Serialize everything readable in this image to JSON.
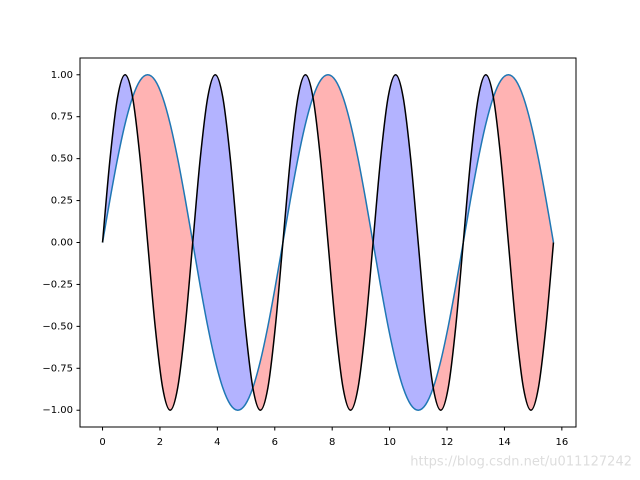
{
  "chart_data": {
    "type": "line",
    "x": [
      0,
      0.262,
      0.524,
      0.785,
      1.047,
      1.309,
      1.571,
      1.833,
      2.094,
      2.356,
      2.618,
      2.88,
      3.142,
      3.403,
      3.665,
      3.927,
      4.189,
      4.451,
      4.712,
      4.974,
      5.236,
      5.498,
      5.76,
      6.021,
      6.283,
      6.545,
      6.807,
      7.069,
      7.33,
      7.592,
      7.854,
      8.116,
      8.378,
      8.639,
      8.901,
      9.163,
      9.425,
      9.687,
      9.948,
      10.21,
      10.472,
      10.734,
      10.996,
      11.257,
      11.519,
      11.781,
      12.043,
      12.305,
      12.566,
      12.828,
      13.09,
      13.352,
      13.614,
      13.875,
      14.137,
      14.399,
      14.661,
      14.923,
      15.184,
      15.446,
      15.708
    ],
    "series": [
      {
        "color": "#1f77b4",
        "values": [
          0,
          0.259,
          0.5,
          0.707,
          0.866,
          0.966,
          1,
          0.966,
          0.866,
          0.707,
          0.5,
          0.259,
          0,
          -0.259,
          -0.5,
          -0.707,
          -0.866,
          -0.966,
          -1,
          -0.966,
          -0.866,
          -0.707,
          -0.5,
          -0.259,
          0,
          0.259,
          0.5,
          0.707,
          0.866,
          0.966,
          1,
          0.966,
          0.866,
          0.707,
          0.5,
          0.259,
          0,
          -0.259,
          -0.5,
          -0.707,
          -0.866,
          -0.966,
          -1,
          -0.966,
          -0.866,
          -0.707,
          -0.5,
          -0.259,
          0,
          0.259,
          0.5,
          0.707,
          0.866,
          0.966,
          1,
          0.966,
          0.866,
          0.707,
          0.5,
          0.259,
          0
        ]
      },
      {
        "color": "#000000",
        "values": [
          0,
          0.5,
          0.866,
          1,
          0.866,
          0.5,
          0,
          -0.5,
          -0.866,
          -1,
          -0.866,
          -0.5,
          0,
          0.5,
          0.866,
          1,
          0.866,
          0.5,
          0,
          -0.5,
          -0.866,
          -1,
          -0.866,
          -0.5,
          0,
          0.5,
          0.866,
          1,
          0.866,
          0.5,
          0,
          -0.5,
          -0.866,
          -1,
          -0.866,
          -0.5,
          0,
          0.5,
          0.866,
          1,
          0.866,
          0.5,
          0,
          -0.5,
          -0.866,
          -1,
          -0.866,
          -0.5,
          0,
          0.5,
          0.866,
          1,
          0.866,
          0.5,
          0,
          -0.5,
          -0.866,
          -1,
          -0.866,
          -0.5,
          0
        ]
      }
    ],
    "fill_colors": [
      "#b3b3ff",
      "#ffb3b3"
    ],
    "xlim": [
      -0.785,
      16.493
    ],
    "ylim": [
      -1.1,
      1.1
    ],
    "xticks": [
      0,
      2,
      4,
      6,
      8,
      10,
      12,
      14,
      16
    ],
    "yticks": [
      {
        "value": -1,
        "label": "−1.00"
      },
      {
        "value": -0.75,
        "label": "−0.75"
      },
      {
        "value": -0.5,
        "label": "−0.50"
      },
      {
        "value": -0.25,
        "label": "−0.25"
      },
      {
        "value": 0,
        "label": "0.00"
      },
      {
        "value": 0.25,
        "label": "0.25"
      },
      {
        "value": 0.5,
        "label": "0.50"
      },
      {
        "value": 0.75,
        "label": "0.75"
      },
      {
        "value": 1,
        "label": "1.00"
      }
    ],
    "watermark": "https://blog.csdn.net/u011127242"
  }
}
